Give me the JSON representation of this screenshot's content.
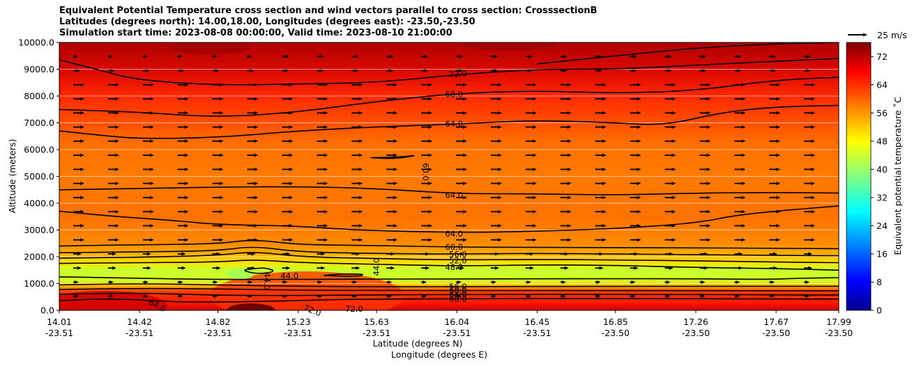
{
  "chart_data": {
    "type": "heatmap",
    "title_lines": [
      "Equivalent Potential Temperature cross section and wind vectors parallel to cross section: CrosssectionB",
      "Latitudes (degrees north): 14.00,18.00, Longitudes (degrees east): -23.50,-23.50",
      "Simulation start time: 2023-08-08 00:00:00, Valid time: 2023-08-10 21:00:00"
    ],
    "ylabel": "Altitude (meters)",
    "xlabel_lat": "Latitude (degrees N)",
    "xlabel_lon": "Longitude (degrees E)",
    "ylim": [
      0,
      10000
    ],
    "yticks": [
      "0.0",
      "1000.0",
      "2000.0",
      "3000.0",
      "4000.0",
      "5000.0",
      "6000.0",
      "7000.0",
      "8000.0",
      "9000.0",
      "10000.0"
    ],
    "xticks_lat": [
      "14.01",
      "14.42",
      "14.82",
      "15.23",
      "15.63",
      "16.04",
      "16.45",
      "16.85",
      "17.26",
      "17.67",
      "17.99"
    ],
    "xticks_lon": [
      "-23.51",
      "-23.51",
      "-23.51",
      "-23.51",
      "-23.51",
      "-23.51",
      "-23.51",
      "-23.50",
      "-23.50",
      "-23.50",
      "-23.50"
    ],
    "grid": "horizontal",
    "colorbar": {
      "label": "Equivalent potential temperature ˚C",
      "range": [
        0,
        76
      ],
      "ticks": [
        "0",
        "8",
        "16",
        "24",
        "32",
        "40",
        "48",
        "56",
        "64",
        "72"
      ]
    },
    "quiver_key": "25 m/s",
    "contour_labels": [
      {
        "text": "72.0",
        "altitude": 8800,
        "lat": 16.0,
        "rotate": -4
      },
      {
        "text": "68.0",
        "altitude": 8060,
        "lat": 15.98,
        "rotate": 0
      },
      {
        "text": "64.0",
        "altitude": 6960,
        "lat": 15.98,
        "rotate": 0
      },
      {
        "text": "60.0",
        "altitude": 5500,
        "lat": 15.88,
        "rotate": 90
      },
      {
        "text": "64.0",
        "altitude": 4300,
        "lat": 15.98,
        "rotate": 0
      },
      {
        "text": "64.0",
        "altitude": 2860,
        "lat": 15.98,
        "rotate": 0
      },
      {
        "text": "60.0",
        "altitude": 2360,
        "lat": 15.98,
        "rotate": 0
      },
      {
        "text": "56.0",
        "altitude": 2090,
        "lat": 16.0,
        "rotate": 0
      },
      {
        "text": "52.0",
        "altitude": 1860,
        "lat": 16.0,
        "rotate": 0
      },
      {
        "text": "48.0",
        "altitude": 1610,
        "lat": 15.98,
        "rotate": 0
      },
      {
        "text": "44.0",
        "altitude": 1290,
        "lat": 15.14,
        "rotate": 0
      },
      {
        "text": "44.0",
        "altitude": 1420,
        "lat": 15.07,
        "rotate": 90
      },
      {
        "text": "44.0",
        "altitude": 1290,
        "lat": 15.63,
        "rotate": -90
      },
      {
        "text": "56.0",
        "altitude": 880,
        "lat": 16.0,
        "rotate": 0
      },
      {
        "text": "60.0",
        "altitude": 740,
        "lat": 16.0,
        "rotate": 0
      },
      {
        "text": "64.0",
        "altitude": 590,
        "lat": 16.0,
        "rotate": 0
      },
      {
        "text": "68.0",
        "altitude": 430,
        "lat": 16.0,
        "rotate": 0
      },
      {
        "text": "64.0",
        "altitude": 340,
        "lat": 14.47,
        "rotate": 28
      },
      {
        "text": "72.0",
        "altitude": 120,
        "lat": 15.26,
        "rotate": 22
      },
      {
        "text": "72.0",
        "altitude": 50,
        "lat": 15.47,
        "rotate": 0
      }
    ],
    "contour_levels": [
      {
        "value": 44,
        "pts": [
          [
            15.0,
            1550
          ],
          [
            15.06,
            1600
          ],
          [
            15.12,
            1450
          ],
          [
            15.02,
            1350
          ],
          [
            14.94,
            1500
          ],
          [
            15.0,
            1550
          ]
        ]
      },
      {
        "value": 44,
        "pts": [
          [
            15.36,
            1300
          ],
          [
            15.52,
            1260
          ],
          [
            15.58,
            1350
          ],
          [
            15.44,
            1360
          ],
          [
            15.36,
            1300
          ]
        ]
      },
      {
        "value": 48,
        "pts": [
          [
            14.01,
            1250
          ],
          [
            14.4,
            1200
          ],
          [
            14.8,
            1150
          ],
          [
            15.2,
            1150
          ],
          [
            15.6,
            1170
          ],
          [
            16.0,
            1170
          ],
          [
            16.45,
            1180
          ],
          [
            16.85,
            1180
          ],
          [
            17.26,
            1180
          ],
          [
            17.6,
            1150
          ],
          [
            17.8,
            1200
          ],
          [
            17.99,
            1220
          ]
        ]
      },
      {
        "value": 48,
        "pts": [
          [
            14.01,
            1750
          ],
          [
            14.4,
            1780
          ],
          [
            14.82,
            1800
          ],
          [
            15.0,
            1900
          ],
          [
            15.23,
            1780
          ],
          [
            15.63,
            1720
          ],
          [
            16.04,
            1650
          ],
          [
            16.45,
            1700
          ],
          [
            16.85,
            1680
          ],
          [
            17.26,
            1600
          ],
          [
            17.67,
            1560
          ],
          [
            17.99,
            1500
          ]
        ]
      },
      {
        "value": 52,
        "pts": [
          [
            14.01,
            1950
          ],
          [
            14.42,
            1980
          ],
          [
            14.82,
            2050
          ],
          [
            15.0,
            2200
          ],
          [
            15.23,
            2000
          ],
          [
            15.63,
            1930
          ],
          [
            16.04,
            1880
          ],
          [
            16.45,
            1900
          ],
          [
            16.85,
            1880
          ],
          [
            17.26,
            1850
          ],
          [
            17.67,
            1800
          ],
          [
            17.99,
            1780
          ]
        ]
      },
      {
        "value": 56,
        "pts": [
          [
            14.01,
            2150
          ],
          [
            14.42,
            2180
          ],
          [
            14.82,
            2220
          ],
          [
            15.0,
            2400
          ],
          [
            15.23,
            2180
          ],
          [
            15.63,
            2120
          ],
          [
            16.04,
            2100
          ],
          [
            16.45,
            2130
          ],
          [
            16.85,
            2100
          ],
          [
            17.26,
            2080
          ],
          [
            17.67,
            2050
          ],
          [
            17.99,
            2040
          ]
        ]
      },
      {
        "value": 60,
        "pts": [
          [
            14.01,
            2400
          ],
          [
            14.42,
            2450
          ],
          [
            14.82,
            2480
          ],
          [
            15.0,
            2650
          ],
          [
            15.23,
            2450
          ],
          [
            15.63,
            2420
          ],
          [
            16.04,
            2360
          ],
          [
            16.45,
            2350
          ],
          [
            16.85,
            2340
          ],
          [
            17.26,
            2330
          ],
          [
            17.67,
            2320
          ],
          [
            17.99,
            2300
          ]
        ]
      },
      {
        "value": 64,
        "pts": [
          [
            14.01,
            3700
          ],
          [
            14.3,
            3500
          ],
          [
            14.6,
            3350
          ],
          [
            14.82,
            3200
          ],
          [
            15.23,
            3150
          ],
          [
            15.5,
            3000
          ],
          [
            16.04,
            2900
          ],
          [
            16.45,
            2950
          ],
          [
            16.85,
            3050
          ],
          [
            17.26,
            3250
          ],
          [
            17.5,
            3600
          ],
          [
            17.99,
            3900
          ]
        ]
      },
      {
        "value": 64,
        "pts": [
          [
            14.01,
            4500
          ],
          [
            14.42,
            4550
          ],
          [
            14.82,
            4600
          ],
          [
            15.23,
            4620
          ],
          [
            15.63,
            4550
          ],
          [
            16.04,
            4350
          ],
          [
            16.45,
            4350
          ],
          [
            16.85,
            4300
          ],
          [
            17.26,
            4380
          ],
          [
            17.67,
            4400
          ],
          [
            17.99,
            4380
          ]
        ]
      },
      {
        "value": 60,
        "pts": [
          [
            15.6,
            5700
          ],
          [
            15.75,
            5720
          ],
          [
            15.85,
            5800
          ],
          [
            15.72,
            5650
          ],
          [
            15.6,
            5700
          ]
        ]
      },
      {
        "value": 64,
        "pts": [
          [
            14.01,
            6700
          ],
          [
            14.2,
            6550
          ],
          [
            14.42,
            6400
          ],
          [
            14.82,
            6450
          ],
          [
            15.23,
            6700
          ],
          [
            15.63,
            6850
          ],
          [
            16.04,
            6950
          ],
          [
            16.45,
            7100
          ],
          [
            16.85,
            7000
          ],
          [
            17.1,
            6900
          ],
          [
            17.4,
            7400
          ],
          [
            17.67,
            7600
          ],
          [
            17.99,
            7650
          ]
        ]
      },
      {
        "value": 68,
        "pts": [
          [
            14.01,
            7500
          ],
          [
            14.42,
            7400
          ],
          [
            14.82,
            7200
          ],
          [
            15.23,
            7400
          ],
          [
            15.63,
            7800
          ],
          [
            16.04,
            8100
          ],
          [
            16.45,
            8200
          ],
          [
            16.85,
            8100
          ],
          [
            17.26,
            8200
          ],
          [
            17.67,
            8600
          ],
          [
            17.99,
            8700
          ]
        ]
      },
      {
        "value": 72,
        "pts": [
          [
            14.01,
            9350
          ],
          [
            14.2,
            9000
          ],
          [
            14.4,
            8600
          ],
          [
            14.82,
            8400
          ],
          [
            15.23,
            8450
          ],
          [
            15.63,
            8500
          ],
          [
            16.04,
            8800
          ],
          [
            16.45,
            9000
          ],
          [
            16.85,
            9000
          ],
          [
            17.26,
            9150
          ],
          [
            17.67,
            9300
          ],
          [
            17.99,
            9400
          ]
        ]
      },
      {
        "value": 72,
        "pts": [
          [
            16.45,
            9200
          ],
          [
            16.85,
            9500
          ],
          [
            17.26,
            9800
          ],
          [
            17.67,
            9950
          ],
          [
            17.99,
            10000
          ]
        ]
      },
      {
        "value": 56,
        "pts": [
          [
            14.01,
            950
          ],
          [
            14.42,
            1000
          ],
          [
            14.82,
            950
          ],
          [
            15.23,
            900
          ],
          [
            15.63,
            880
          ],
          [
            16.04,
            880
          ],
          [
            16.85,
            900
          ],
          [
            17.67,
            900
          ],
          [
            17.99,
            900
          ]
        ]
      },
      {
        "value": 60,
        "pts": [
          [
            14.01,
            780
          ],
          [
            14.42,
            820
          ],
          [
            14.82,
            800
          ],
          [
            15.23,
            750
          ],
          [
            15.63,
            740
          ],
          [
            16.04,
            740
          ],
          [
            16.85,
            740
          ],
          [
            17.67,
            730
          ],
          [
            17.99,
            730
          ]
        ]
      },
      {
        "value": 64,
        "pts": [
          [
            14.01,
            600
          ],
          [
            14.42,
            650
          ],
          [
            14.82,
            560
          ],
          [
            15.23,
            550
          ],
          [
            15.63,
            580
          ],
          [
            16.04,
            590
          ],
          [
            16.85,
            600
          ],
          [
            17.67,
            580
          ],
          [
            17.99,
            570
          ]
        ]
      },
      {
        "value": 68,
        "pts": [
          [
            14.01,
            360
          ],
          [
            14.3,
            450
          ],
          [
            14.6,
            300
          ],
          [
            15.0,
            320
          ],
          [
            15.4,
            400
          ],
          [
            15.63,
            420
          ],
          [
            16.04,
            430
          ],
          [
            16.85,
            450
          ],
          [
            17.67,
            420
          ],
          [
            17.99,
            420
          ]
        ]
      }
    ]
  }
}
